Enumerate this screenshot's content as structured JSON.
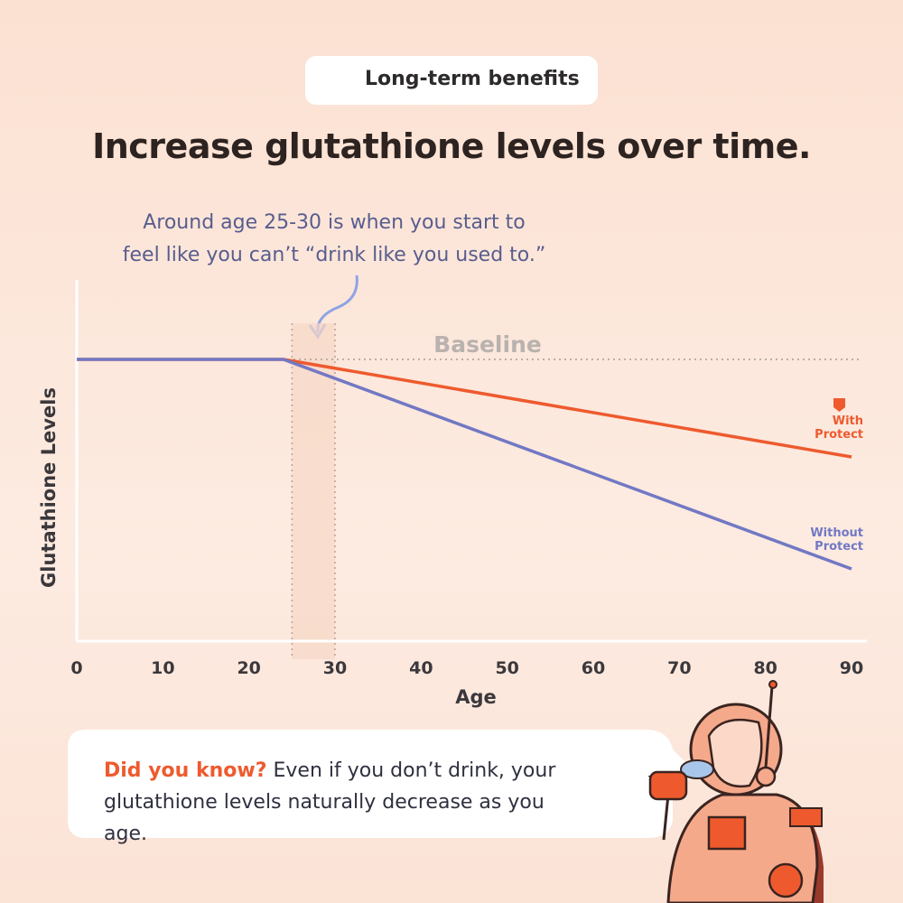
{
  "badge": "Long-term benefits",
  "title": "Increase glutathione levels over time.",
  "annotation": [
    "Around age 25-30 is when you start to",
    "feel like you can’t “drink like you used to.”"
  ],
  "chart_data": {
    "type": "line",
    "x_label": "Age",
    "y_label": "Glutathione Levels",
    "x": [
      0,
      24,
      90
    ],
    "series": [
      {
        "name": "With Protect",
        "color": "#ee5a2e",
        "values": [
          78,
          78,
          51
        ]
      },
      {
        "name": "Without Protect",
        "color": "#7278c4",
        "values": [
          78,
          78,
          20
        ]
      }
    ],
    "xlim": [
      0,
      90
    ],
    "xticks": [
      0,
      10,
      20,
      30,
      40,
      50,
      60,
      70,
      80,
      90
    ],
    "ylim": [
      0,
      100
    ],
    "baseline": {
      "value": 78,
      "label": "Baseline"
    },
    "highlight": [
      25,
      30
    ]
  },
  "callout": {
    "highlight": "Did you know?",
    "text": "Even if you don’t drink, your glutathione levels naturally decrease as you age."
  }
}
